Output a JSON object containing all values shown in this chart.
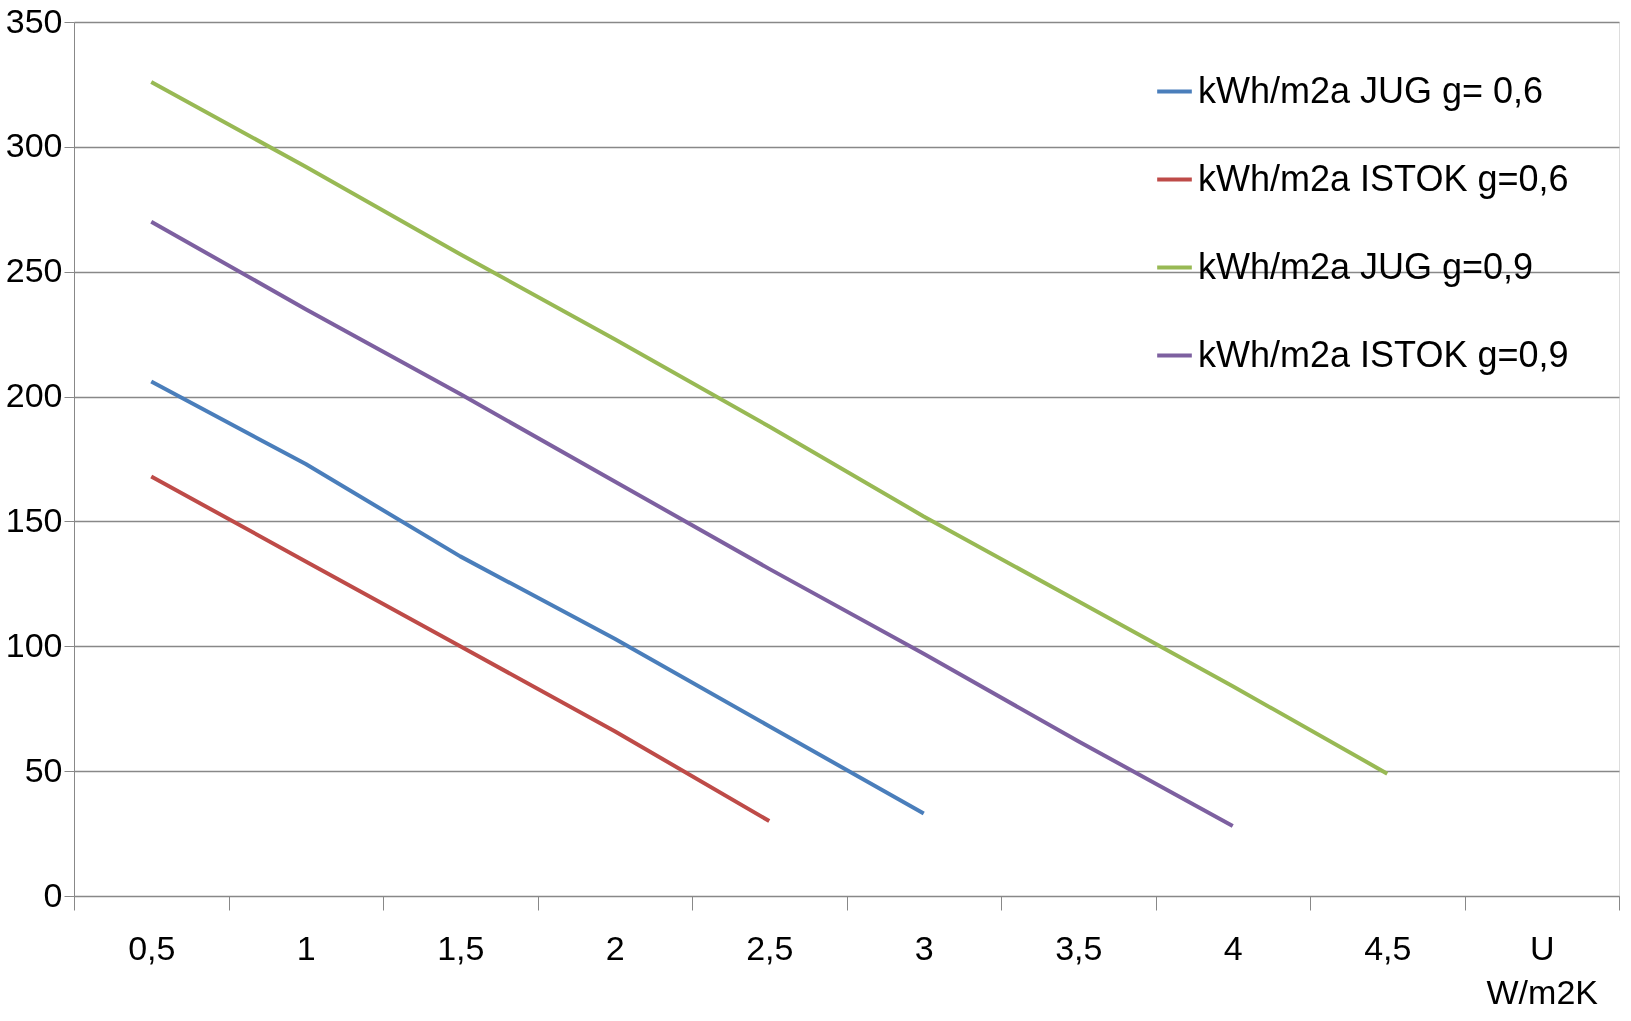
{
  "chart_data": {
    "type": "line",
    "categories": [
      "0,5",
      "1",
      "1,5",
      "2",
      "2,5",
      "3",
      "3,5",
      "4",
      "4,5",
      "U W/m2K"
    ],
    "series": [
      {
        "name": "kWh/m2a JUG g= 0,6",
        "color": "#4a7ebb",
        "values": [
          206,
          173,
          136,
          103,
          68,
          33,
          null,
          null,
          null,
          null
        ]
      },
      {
        "name": "kWh/m2a ISTOK g=0,6",
        "color": "#be4b48",
        "values": [
          168,
          134,
          100,
          66,
          30,
          null,
          null,
          null,
          null,
          null
        ]
      },
      {
        "name": "kWh/m2a JUG g=0,9",
        "color": "#98b954",
        "values": [
          326,
          292,
          257,
          223,
          188,
          152,
          118,
          84,
          49,
          null
        ]
      },
      {
        "name": "kWh/m2a ISTOK g=0,9",
        "color": "#7d60a0",
        "values": [
          270,
          235,
          201,
          166,
          131,
          97,
          62,
          28,
          null,
          null
        ]
      }
    ],
    "ylim": [
      0,
      350
    ],
    "yticks": [
      0,
      50,
      100,
      150,
      200,
      250,
      300,
      350
    ],
    "grid": "y",
    "legend": "top right",
    "marker": "none",
    "line_style": "solid"
  }
}
